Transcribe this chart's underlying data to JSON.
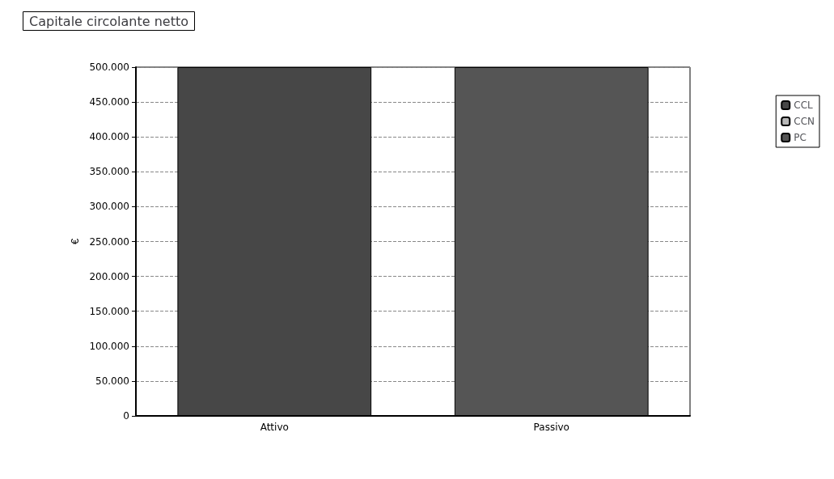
{
  "chart_data": {
    "type": "bar",
    "title": "Capitale circolante netto",
    "ylabel": "€",
    "categories": [
      "Attivo",
      "Passivo"
    ],
    "stacked": true,
    "series": [
      {
        "name": "CCL",
        "color": "#474747",
        "values": [
          500000,
          null
        ]
      },
      {
        "name": "CCN",
        "color": "#b8b8b8",
        "values": [
          null,
          0
        ]
      },
      {
        "name": "PC",
        "color": "#555555",
        "values": [
          null,
          500000
        ]
      }
    ],
    "ylim": [
      0,
      500000
    ],
    "yticks": [
      {
        "value": 0,
        "label": "0"
      },
      {
        "value": 50000,
        "label": "50.000"
      },
      {
        "value": 100000,
        "label": "100.000"
      },
      {
        "value": 150000,
        "label": "150.000"
      },
      {
        "value": 200000,
        "label": "200.000"
      },
      {
        "value": 250000,
        "label": "250.000"
      },
      {
        "value": 300000,
        "label": "300.000"
      },
      {
        "value": 350000,
        "label": "350.000"
      },
      {
        "value": 400000,
        "label": "400.000"
      },
      {
        "value": 450000,
        "label": "450.000"
      },
      {
        "value": 500000,
        "label": "500.000"
      }
    ],
    "grid": "y",
    "legend": "right"
  }
}
